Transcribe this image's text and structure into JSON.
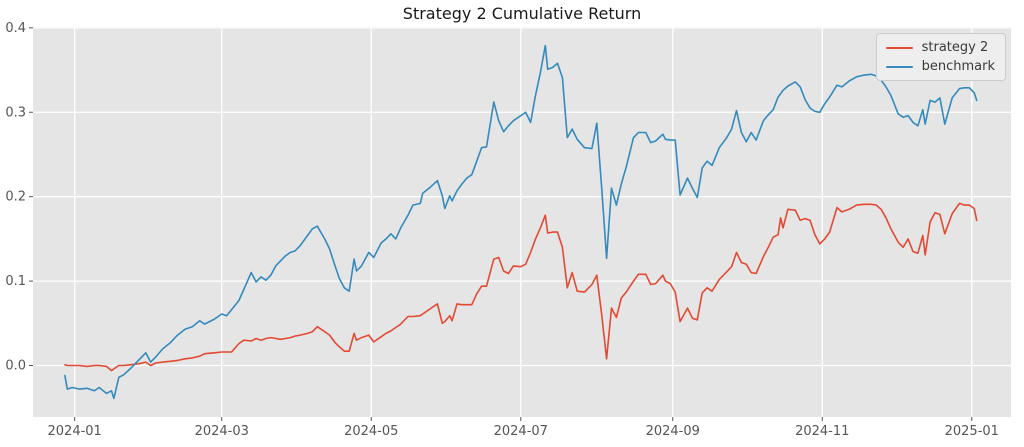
{
  "title": "Strategy 2 Cumulative Return",
  "colors": {
    "figure_bg": "#FFFFFF",
    "plot_bg": "#E5E5E5",
    "grid": "#FFFFFF",
    "tick_label": "#555555",
    "title_text": "#1A1A1A",
    "strategy_red": "#E24A33",
    "benchmark_blue": "#348ABD"
  },
  "legend": {
    "items": [
      {
        "label": "strategy 2",
        "color": "#E24A33"
      },
      {
        "label": "benchmark",
        "color": "#348ABD"
      }
    ],
    "position": "upper right"
  },
  "chart_data": {
    "type": "line",
    "title": "Strategy 2 Cumulative Return",
    "xlabel": "",
    "ylabel": "",
    "x_unit": "days since 2024-01-01, business-day cumulative-return series",
    "xlim": [
      -17,
      382
    ],
    "ylim": [
      -0.061,
      0.401
    ],
    "grid": true,
    "plot_bg": "#E5E5E5",
    "grid_color": "#FFFFFF",
    "legend_position": "upper right",
    "xticks": {
      "positions": [
        0,
        60,
        121,
        182,
        244,
        305,
        366
      ],
      "labels": [
        "2024-01",
        "2024-03",
        "2024-05",
        "2024-07",
        "2024-09",
        "2024-11",
        "2025-01"
      ]
    },
    "yticks": {
      "positions": [
        0.0,
        0.1,
        0.2,
        0.3,
        0.4
      ],
      "labels": [
        "0.0",
        "0.1",
        "0.2",
        "0.3",
        "0.4"
      ]
    },
    "x": [
      -4,
      -3,
      -1,
      2,
      5,
      8,
      10,
      13,
      15,
      16,
      18,
      20,
      23,
      26,
      29,
      31,
      33,
      36,
      39,
      42,
      45,
      48,
      51,
      53,
      57,
      60,
      62,
      64,
      67,
      69,
      72,
      74,
      76,
      78,
      80,
      82,
      84,
      86,
      88,
      90,
      92,
      95,
      97,
      99,
      102,
      104,
      106,
      108,
      110,
      112,
      114,
      115,
      117,
      120,
      122,
      125,
      127,
      129,
      131,
      133,
      136,
      138,
      141,
      142,
      145,
      148,
      150,
      151,
      153,
      154,
      156,
      158,
      160,
      162,
      164,
      166,
      168,
      171,
      173,
      175,
      177,
      179,
      182,
      184,
      186,
      188,
      190,
      192,
      193,
      195,
      197,
      199,
      201,
      203,
      205,
      208,
      211,
      213,
      215,
      217,
      219,
      221,
      223,
      225,
      228,
      230,
      233,
      235,
      237,
      240,
      241,
      243,
      245,
      247,
      250,
      252,
      254,
      256,
      258,
      260,
      263,
      266,
      268,
      270,
      272,
      274,
      276,
      278,
      281,
      283,
      285,
      287,
      288,
      289,
      291,
      294,
      296,
      298,
      300,
      302,
      304,
      306,
      308,
      311,
      313,
      316,
      319,
      322,
      325,
      327,
      329,
      331,
      333,
      336,
      338,
      340,
      342,
      344,
      346,
      347,
      349,
      351,
      353,
      355,
      358,
      361,
      363,
      365,
      367,
      368
    ],
    "series": [
      {
        "name": "strategy 2",
        "color": "#E24A33",
        "values": [
          0.001,
          0.0,
          0.0,
          0.0,
          -0.001,
          0.0,
          0.0,
          -0.001,
          -0.006,
          -0.004,
          0.0,
          0.0,
          0.001,
          0.002,
          0.004,
          0.0,
          0.003,
          0.004,
          0.005,
          0.006,
          0.008,
          0.009,
          0.011,
          0.014,
          0.015,
          0.016,
          0.016,
          0.016,
          0.026,
          0.03,
          0.029,
          0.032,
          0.03,
          0.032,
          0.033,
          0.032,
          0.031,
          0.032,
          0.033,
          0.035,
          0.036,
          0.038,
          0.04,
          0.046,
          0.04,
          0.036,
          0.028,
          0.022,
          0.017,
          0.017,
          0.038,
          0.03,
          0.033,
          0.036,
          0.028,
          0.034,
          0.038,
          0.041,
          0.045,
          0.049,
          0.058,
          0.058,
          0.059,
          0.061,
          0.067,
          0.073,
          0.05,
          0.052,
          0.059,
          0.053,
          0.073,
          0.072,
          0.072,
          0.072,
          0.085,
          0.094,
          0.094,
          0.126,
          0.128,
          0.112,
          0.109,
          0.118,
          0.117,
          0.12,
          0.134,
          0.15,
          0.163,
          0.178,
          0.157,
          0.158,
          0.158,
          0.14,
          0.092,
          0.11,
          0.088,
          0.087,
          0.096,
          0.107,
          0.06,
          0.008,
          0.068,
          0.057,
          0.08,
          0.087,
          0.1,
          0.108,
          0.108,
          0.096,
          0.097,
          0.107,
          0.1,
          0.097,
          0.087,
          0.052,
          0.068,
          0.056,
          0.054,
          0.086,
          0.092,
          0.088,
          0.102,
          0.111,
          0.117,
          0.134,
          0.122,
          0.12,
          0.11,
          0.109,
          0.129,
          0.14,
          0.152,
          0.155,
          0.175,
          0.163,
          0.185,
          0.184,
          0.172,
          0.174,
          0.172,
          0.155,
          0.144,
          0.15,
          0.158,
          0.187,
          0.182,
          0.185,
          0.19,
          0.191,
          0.191,
          0.19,
          0.185,
          0.175,
          0.162,
          0.146,
          0.14,
          0.15,
          0.135,
          0.133,
          0.154,
          0.131,
          0.17,
          0.181,
          0.179,
          0.156,
          0.18,
          0.192,
          0.19,
          0.19,
          0.186,
          0.172
        ]
      },
      {
        "name": "benchmark",
        "color": "#348ABD",
        "values": [
          -0.012,
          -0.028,
          -0.026,
          -0.028,
          -0.027,
          -0.03,
          -0.026,
          -0.033,
          -0.03,
          -0.039,
          -0.014,
          -0.011,
          -0.003,
          0.006,
          0.015,
          0.004,
          0.01,
          0.02,
          0.027,
          0.036,
          0.043,
          0.046,
          0.053,
          0.049,
          0.055,
          0.061,
          0.059,
          0.066,
          0.077,
          0.09,
          0.11,
          0.099,
          0.105,
          0.101,
          0.107,
          0.118,
          0.124,
          0.13,
          0.134,
          0.136,
          0.142,
          0.154,
          0.162,
          0.165,
          0.15,
          0.138,
          0.12,
          0.103,
          0.092,
          0.088,
          0.126,
          0.112,
          0.118,
          0.134,
          0.128,
          0.145,
          0.15,
          0.156,
          0.15,
          0.163,
          0.178,
          0.19,
          0.192,
          0.204,
          0.211,
          0.219,
          0.201,
          0.186,
          0.201,
          0.195,
          0.207,
          0.215,
          0.222,
          0.226,
          0.242,
          0.258,
          0.259,
          0.312,
          0.29,
          0.277,
          0.284,
          0.29,
          0.296,
          0.3,
          0.288,
          0.32,
          0.347,
          0.379,
          0.351,
          0.353,
          0.358,
          0.341,
          0.27,
          0.28,
          0.268,
          0.258,
          0.257,
          0.287,
          0.21,
          0.127,
          0.21,
          0.19,
          0.215,
          0.235,
          0.27,
          0.276,
          0.276,
          0.264,
          0.266,
          0.274,
          0.268,
          0.267,
          0.267,
          0.202,
          0.222,
          0.21,
          0.199,
          0.234,
          0.242,
          0.237,
          0.258,
          0.27,
          0.28,
          0.302,
          0.276,
          0.265,
          0.276,
          0.267,
          0.29,
          0.297,
          0.303,
          0.318,
          0.322,
          0.326,
          0.331,
          0.336,
          0.33,
          0.315,
          0.305,
          0.301,
          0.3,
          0.31,
          0.318,
          0.332,
          0.33,
          0.337,
          0.342,
          0.344,
          0.345,
          0.343,
          0.338,
          0.33,
          0.32,
          0.298,
          0.294,
          0.296,
          0.288,
          0.284,
          0.303,
          0.286,
          0.314,
          0.312,
          0.317,
          0.286,
          0.317,
          0.328,
          0.329,
          0.329,
          0.323,
          0.314
        ]
      }
    ]
  }
}
